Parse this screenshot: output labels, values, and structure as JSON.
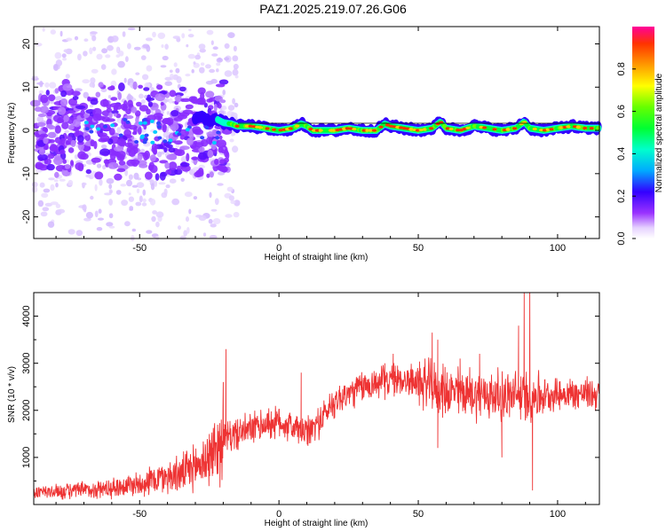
{
  "figure": {
    "title": "PAZ1.2025.219.07.26.G06"
  },
  "chart_data": [
    {
      "type": "heatmap",
      "xlabel": "Height of straight line (km)",
      "ylabel": "Frequency (Hz)",
      "xlim": [
        -88,
        115
      ],
      "ylim": [
        -25,
        24
      ],
      "xticks": [
        -50,
        0,
        50,
        100
      ],
      "yticks": [
        -20,
        -10,
        0,
        10,
        20
      ],
      "colorbar": {
        "label": "Normalized spectral amplitude",
        "range": [
          0,
          1
        ],
        "ticks": [
          0.0,
          0.2,
          0.4,
          0.6,
          0.8
        ],
        "tick_labels": [
          "0.0",
          "0.2",
          "0.4",
          "0.6",
          "0.8"
        ]
      },
      "ridge": {
        "x": [
          -28,
          -25,
          -22,
          -20,
          -17,
          -15,
          -10,
          -5,
          0,
          5,
          8,
          10,
          12,
          15,
          20,
          25,
          30,
          35,
          38,
          40,
          45,
          50,
          55,
          58,
          60,
          65,
          70,
          75,
          80,
          85,
          88,
          90,
          95,
          100,
          105,
          110,
          115
        ],
        "y": [
          3,
          2.5,
          2.5,
          1.8,
          1.5,
          1,
          1,
          0.5,
          0,
          0.5,
          1.5,
          1,
          0,
          0,
          0,
          0.5,
          0,
          0,
          1.5,
          1,
          0.5,
          0,
          0.5,
          2,
          0.5,
          0,
          1,
          0.5,
          0,
          0.5,
          2,
          0.5,
          0,
          0.5,
          1,
          0.5,
          0.5
        ]
      }
    },
    {
      "type": "line",
      "xlabel": "Height of straight line (km)",
      "ylabel": "SNR (10 * v/v)",
      "xlim": [
        -88,
        115
      ],
      "ylim": [
        0,
        4500
      ],
      "xticks": [
        -50,
        0,
        50,
        100
      ],
      "yticks": [
        1000,
        2000,
        3000,
        4000
      ],
      "color": "#ee3333",
      "trend": {
        "x": [
          -88,
          -70,
          -60,
          -50,
          -40,
          -35,
          -30,
          -25,
          -20,
          -15,
          -10,
          -5,
          0,
          5,
          10,
          15,
          20,
          30,
          40,
          45,
          50,
          55,
          60,
          70,
          80,
          90,
          100,
          110,
          115
        ],
        "y": [
          250,
          300,
          350,
          450,
          600,
          650,
          800,
          1000,
          1400,
          1500,
          1600,
          1700,
          1750,
          1650,
          1500,
          1800,
          2200,
          2500,
          2650,
          2650,
          2600,
          2500,
          2400,
          2350,
          2300,
          2300,
          2350,
          2350,
          2350
        ]
      },
      "spikes": [
        {
          "x": -19,
          "y": 3300
        },
        {
          "x": -20,
          "y": 2600
        },
        {
          "x": 8,
          "y": 2800
        },
        {
          "x": 38,
          "y": 3000
        },
        {
          "x": 41,
          "y": 3200
        },
        {
          "x": 55,
          "y": 3650
        },
        {
          "x": 57,
          "y": 3500
        },
        {
          "x": 65,
          "y": 3100
        },
        {
          "x": 72,
          "y": 3200
        },
        {
          "x": 86,
          "y": 3800
        },
        {
          "x": 88,
          "y": 4500
        },
        {
          "x": 90,
          "y": 4500
        },
        {
          "x": 91,
          "y": 300
        },
        {
          "x": 57,
          "y": 1200
        },
        {
          "x": 80,
          "y": 1000
        }
      ]
    }
  ]
}
